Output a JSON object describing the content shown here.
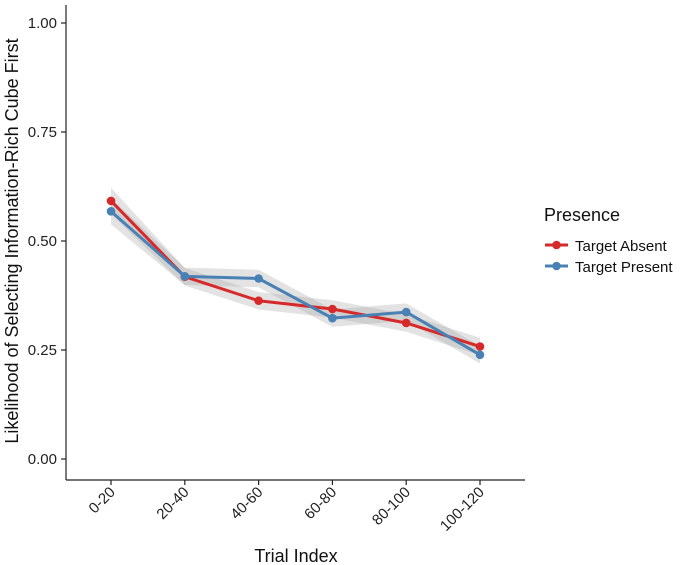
{
  "chart_data": {
    "type": "line",
    "title": "",
    "xlabel": "Trial Index",
    "ylabel": "Likelihood of Selecting Information-Rich Cube First",
    "categories": [
      "0-20",
      "20-40",
      "40-60",
      "60-80",
      "80-100",
      "100-120"
    ],
    "ylim": [
      0,
      1
    ],
    "yticks": [
      "0.00",
      "0.25",
      "0.50",
      "0.75",
      "1.00"
    ],
    "grid": false,
    "legend": {
      "title": "Presence",
      "position": "right"
    },
    "series": [
      {
        "name": "Target Absent",
        "color": "#D62A2A",
        "values": [
          0.592,
          0.418,
          0.363,
          0.344,
          0.312,
          0.258
        ],
        "ci_low": [
          0.562,
          0.398,
          0.343,
          0.324,
          0.292,
          0.238
        ],
        "ci_high": [
          0.622,
          0.438,
          0.383,
          0.364,
          0.332,
          0.278
        ]
      },
      {
        "name": "Target Present",
        "color": "#4A81B5",
        "values": [
          0.568,
          0.419,
          0.414,
          0.323,
          0.337,
          0.239
        ],
        "ci_low": [
          0.538,
          0.399,
          0.394,
          0.303,
          0.317,
          0.219
        ],
        "ci_high": [
          0.598,
          0.439,
          0.434,
          0.343,
          0.357,
          0.259
        ]
      }
    ]
  }
}
